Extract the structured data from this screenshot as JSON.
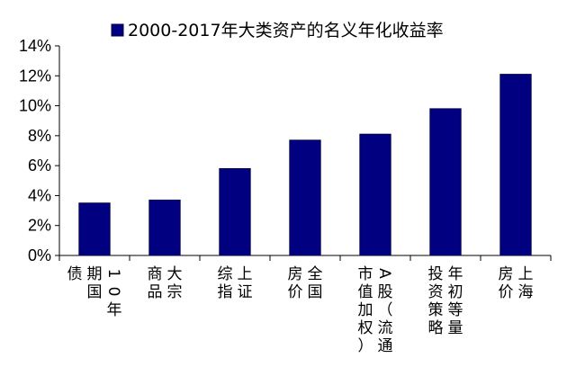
{
  "chart_data": {
    "type": "bar",
    "title": "",
    "xlabel": "",
    "ylabel": "",
    "legend": {
      "position": "top-center",
      "label": "2000-2017年大类资产的名义年化收益率"
    },
    "ylim": [
      0,
      14
    ],
    "yticks": [
      "0%",
      "2%",
      "4%",
      "6%",
      "8%",
      "10%",
      "12%",
      "14%"
    ],
    "categories": [
      [
        "10年",
        "期国",
        "债"
      ],
      [
        "大宗",
        "商品"
      ],
      [
        "上证",
        "综指"
      ],
      [
        "全国",
        "房价"
      ],
      [
        "A股（流通",
        "市值加权）"
      ],
      [
        "年初等量",
        "投资策略"
      ],
      [
        "上海",
        "房价"
      ]
    ],
    "series": [
      {
        "name": "2000-2017年大类资产的名义年化收益率",
        "color": "#000080",
        "values": [
          3.5,
          3.7,
          5.8,
          7.7,
          8.1,
          9.8,
          12.1
        ]
      }
    ],
    "grid": false
  }
}
